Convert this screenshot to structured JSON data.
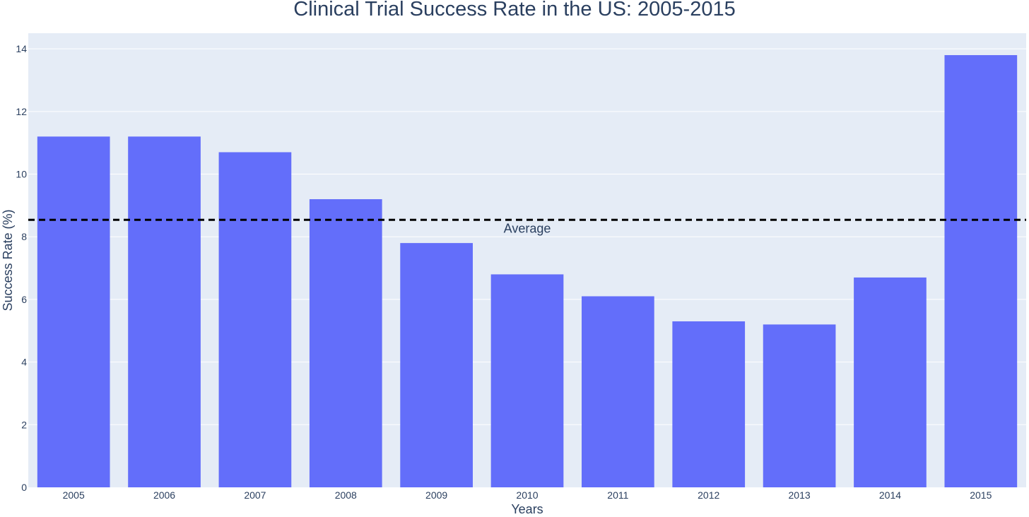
{
  "chart_data": {
    "type": "bar",
    "title": "Clinical Trial Success Rate in the US: 2005-2015",
    "xlabel": "Years",
    "ylabel": "Success Rate (%)",
    "categories": [
      "2005",
      "2006",
      "2007",
      "2008",
      "2009",
      "2010",
      "2011",
      "2012",
      "2013",
      "2014",
      "2015"
    ],
    "values": [
      11.2,
      11.2,
      10.7,
      9.2,
      7.8,
      6.8,
      6.1,
      5.3,
      5.2,
      6.7,
      13.8
    ],
    "ylim": [
      0,
      14.5
    ],
    "yticks": [
      0,
      2,
      4,
      6,
      8,
      10,
      12,
      14
    ],
    "grid": true,
    "reference_line": {
      "label": "Average",
      "value": 8.54,
      "style": "dashed"
    },
    "colors": {
      "bar": "#636efa",
      "plot_background": "#e5ecf6",
      "gridline": "#ffffff",
      "text": "#2a3f5f",
      "reference_line": "#000000"
    }
  }
}
